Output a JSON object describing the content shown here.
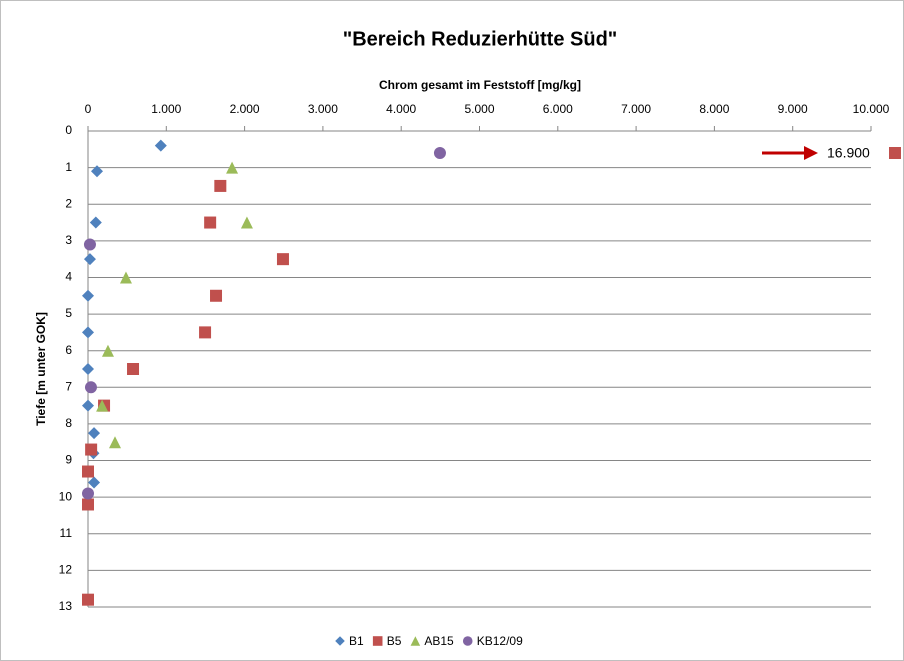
{
  "chart_data": {
    "type": "scatter",
    "title": "\"Bereich Reduzierhütte Süd\"",
    "x_label": "Chrom gesamt im Feststoff  [mg/kg]",
    "y_label": "Tiefe [m unter GOK]",
    "xlim": [
      0,
      10000
    ],
    "xticks": [
      0,
      {
        "value": 1000,
        "label": "1.000"
      },
      {
        "value": 2000,
        "label": "2.000"
      },
      {
        "value": 3000,
        "label": "3.000"
      },
      {
        "value": 4000,
        "label": "4.000"
      },
      {
        "value": 5000,
        "label": "5.000"
      },
      {
        "value": 6000,
        "label": "6.000"
      },
      {
        "value": 7000,
        "label": "7.000"
      },
      {
        "value": 8000,
        "label": "8.000"
      },
      {
        "value": 9000,
        "label": "9.000"
      },
      {
        "value": 10000,
        "label": "10.000"
      }
    ],
    "ylim": [
      0,
      13
    ],
    "yticks": [
      0,
      1,
      2,
      3,
      4,
      5,
      6,
      7,
      8,
      9,
      10,
      11,
      12,
      13
    ],
    "y_inverted": true,
    "grid": true,
    "legend": "bottom",
    "annotation": "16.900",
    "series": [
      {
        "name": "B1",
        "color": "#4f81bd",
        "marker": "diamond",
        "x": [
          930,
          115,
          100,
          25,
          0,
          0,
          0,
          0,
          77,
          70,
          77
        ],
        "values": [
          0.4,
          1.1,
          2.5,
          3.5,
          4.5,
          5.5,
          6.5,
          7.5,
          8.25,
          8.8,
          9.6
        ]
      },
      {
        "name": "B5",
        "color": "#c0504d",
        "marker": "square",
        "x": [
          1690,
          1560,
          2490,
          1635,
          1495,
          575,
          205,
          40,
          0,
          0,
          0
        ],
        "values": [
          1.5,
          2.5,
          3.5,
          4.5,
          5.5,
          6.5,
          7.5,
          8.7,
          9.3,
          10.2,
          12.8
        ]
      },
      {
        "name": "AB15",
        "color": "#9bbb59",
        "marker": "triangle",
        "x": [
          1840,
          2030,
          485,
          255,
          180,
          345
        ],
        "values": [
          1.0,
          2.5,
          4.0,
          6.0,
          7.5,
          8.5
        ]
      },
      {
        "name": "KB12/09",
        "color": "#8064a2",
        "marker": "circle",
        "x": [
          4495,
          25,
          38,
          0
        ],
        "values": [
          0.6,
          3.1,
          7.0,
          9.9
        ]
      }
    ]
  }
}
